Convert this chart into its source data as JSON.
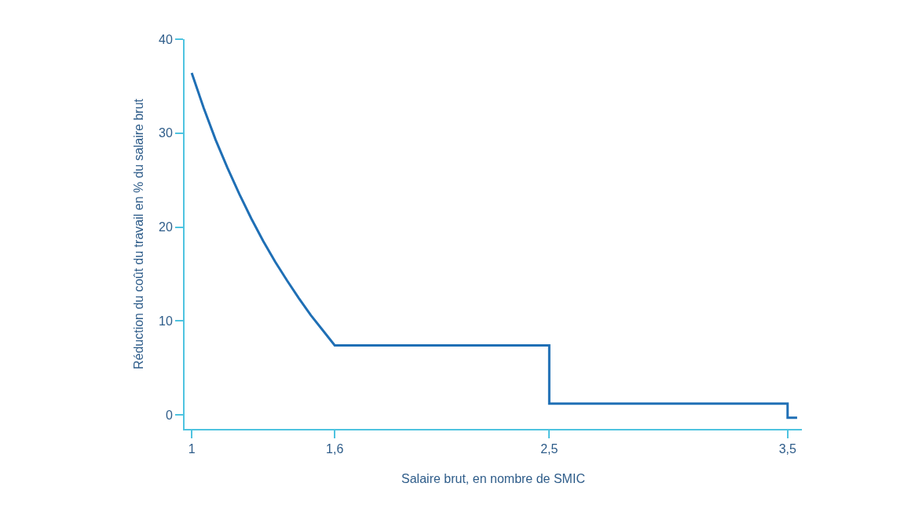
{
  "chart_data": {
    "type": "line",
    "xlabel": "Salaire brut, en nombre de SMIC",
    "ylabel": "Réduction du coût du travail en % du salaire brut",
    "x": [
      1,
      1.05,
      1.1,
      1.15,
      1.2,
      1.25,
      1.3,
      1.35,
      1.4,
      1.45,
      1.5,
      1.55,
      1.6,
      2.5,
      2.5,
      3.5,
      3.5,
      3.54
    ],
    "series": [
      {
        "color": "#1f6fb5",
        "values": [
          36.4,
          32.7,
          29.3,
          26.3,
          23.5,
          20.9,
          18.5,
          16.3,
          14.3,
          12.4,
          10.6,
          9.0,
          7.4,
          7.4,
          1.2,
          1.2,
          -0.3,
          -0.3
        ]
      }
    ],
    "xlim": [
      0.97,
      3.56
    ],
    "ylim": [
      -1.5,
      40
    ],
    "xticks": [
      {
        "value": 1,
        "label": "1"
      },
      {
        "value": 1.6,
        "label": "1,6"
      },
      {
        "value": 2.5,
        "label": "2,5"
      },
      {
        "value": 3.5,
        "label": "3,5"
      }
    ],
    "yticks": [
      0,
      10,
      20,
      30,
      40
    ],
    "grid": false,
    "marker": "none",
    "line_style": "solid"
  }
}
